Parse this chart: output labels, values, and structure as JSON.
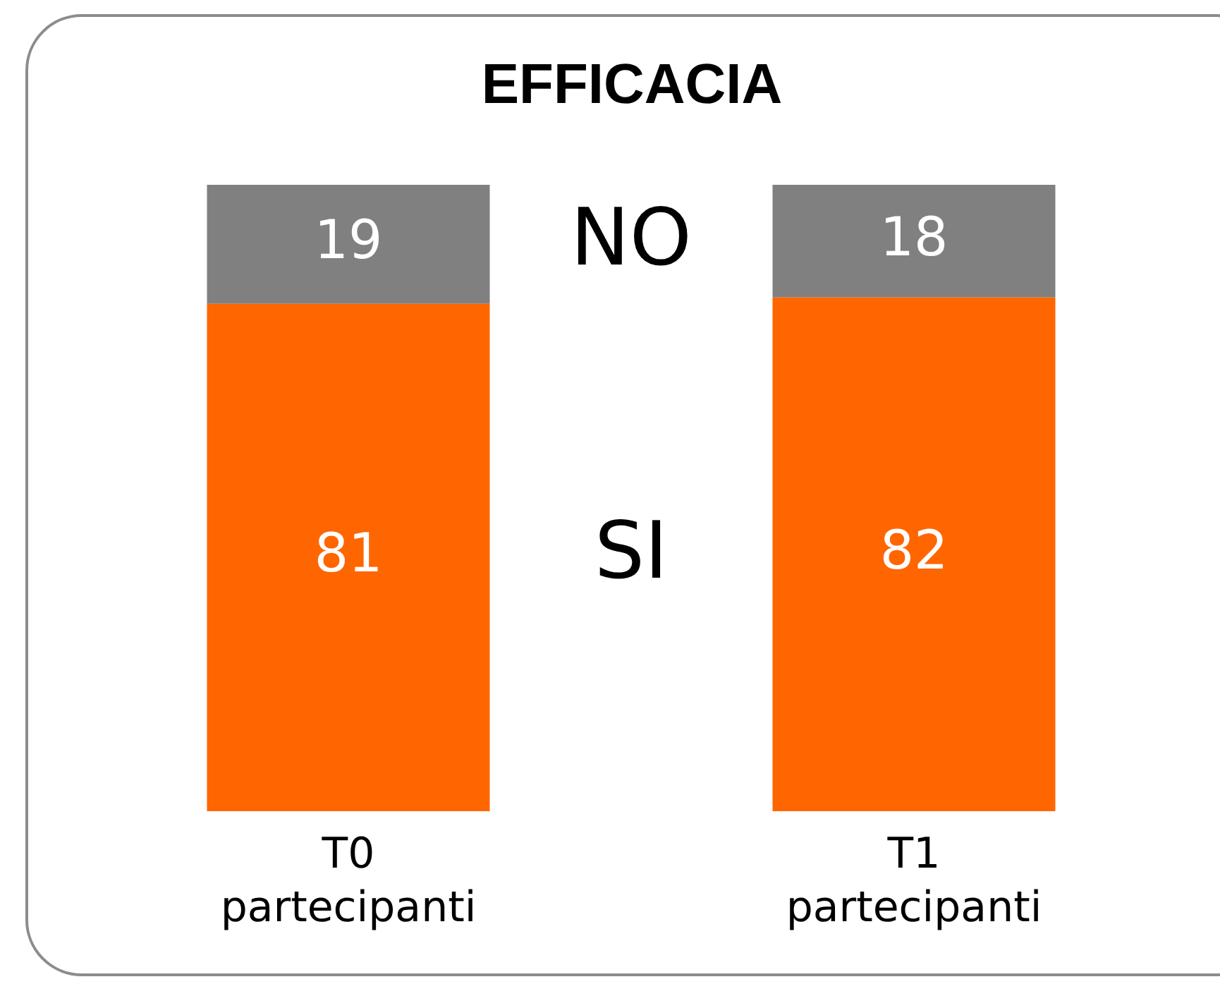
{
  "chart_data": {
    "type": "bar",
    "title": "EFFICACIA",
    "stacked": true,
    "data_labels": true,
    "legend": false,
    "categories": [
      "T0 partecipanti",
      "T1 partecipanti"
    ],
    "series": [
      {
        "name": "SI",
        "color": "#ff6600",
        "values": [
          81,
          82
        ]
      },
      {
        "name": "NO",
        "color": "#808080",
        "values": [
          19,
          18
        ]
      }
    ]
  }
}
